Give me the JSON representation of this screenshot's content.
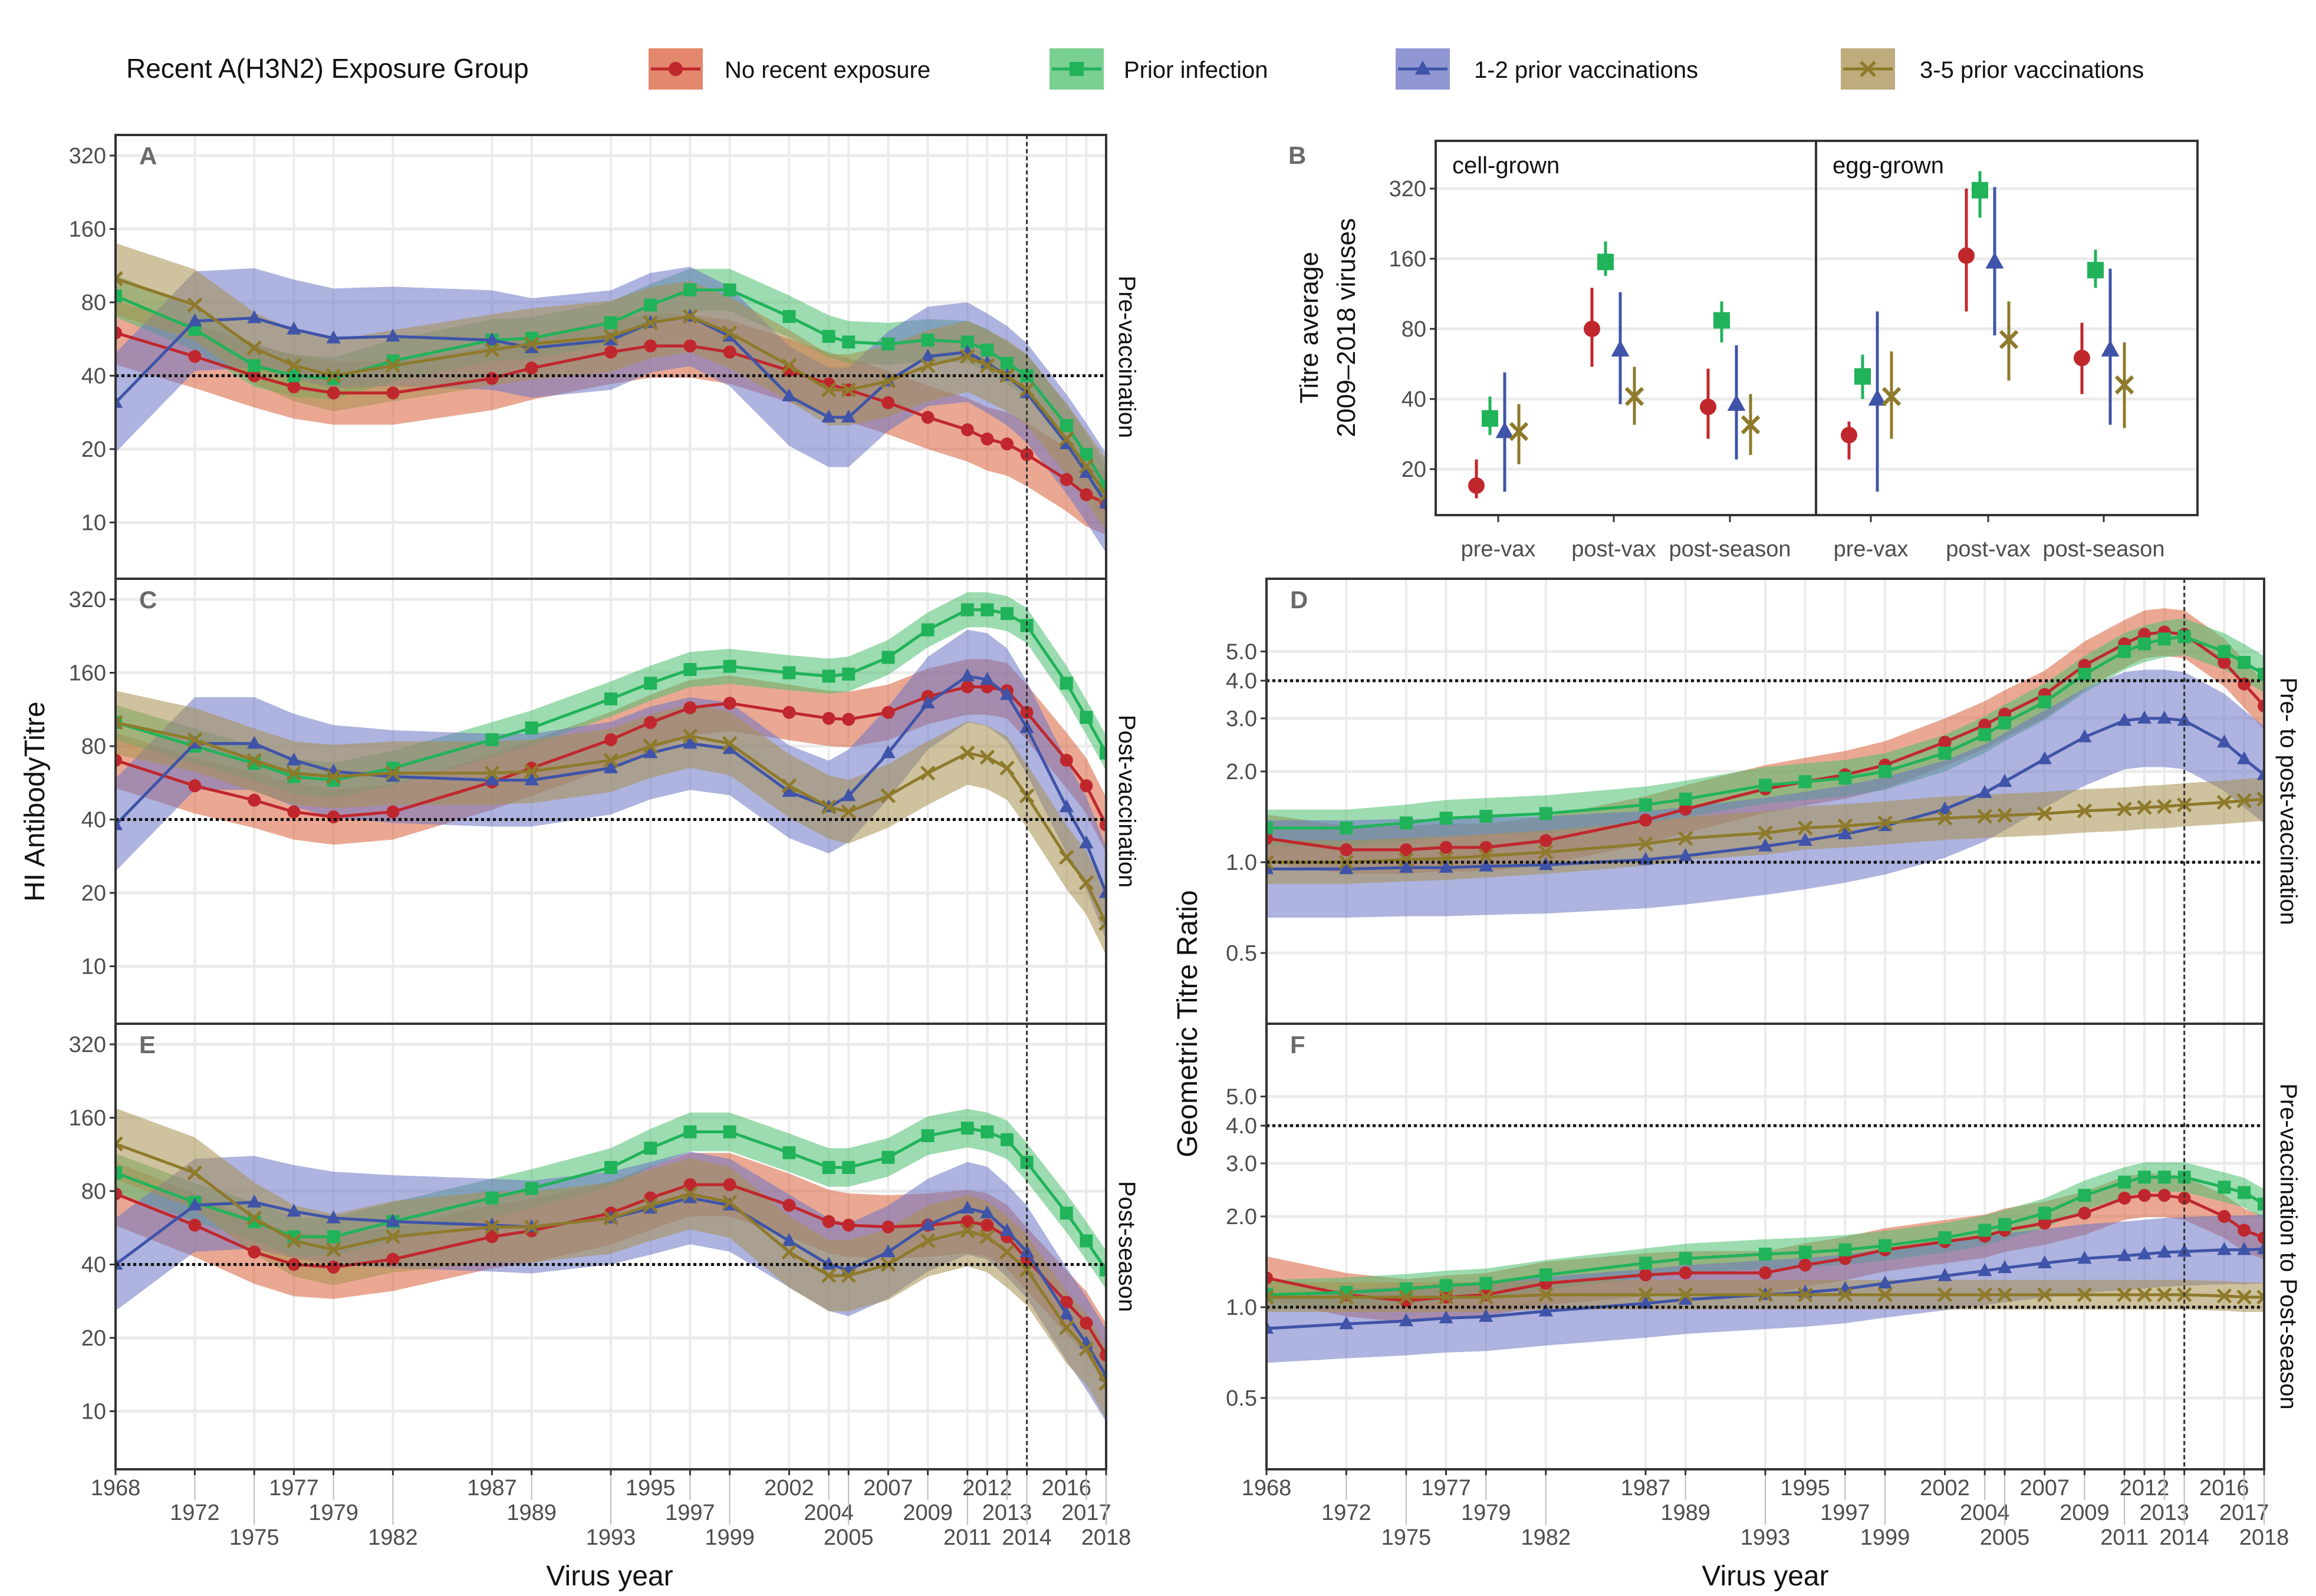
{
  "legend": {
    "title": "Recent A(H3N2) Exposure Group",
    "items": [
      {
        "label": "No recent exposure",
        "color": "#C0272D",
        "fill": "#D9603B",
        "marker": "circle"
      },
      {
        "label": "Prior infection",
        "color": "#21B35A",
        "fill": "#4DBF6F",
        "marker": "square"
      },
      {
        "label": "1-2 prior vaccinations",
        "color": "#3F54A8",
        "fill": "#6C74C4",
        "marker": "triangle"
      },
      {
        "label": "3-5 prior vaccinations",
        "color": "#8E7A2B",
        "fill": "#A89050",
        "marker": "cross"
      }
    ]
  },
  "labels": {
    "left_ylabel": "HI AntibodyTitre",
    "right_ylabel": "Geometric Titre Ratio",
    "xlabel_left": "Virus year",
    "xlabel_right": "Virus year"
  },
  "chart_data": [
    {
      "id": "A",
      "type": "line",
      "strip": "Pre-vaccination",
      "yscale": "log2",
      "yticks": [
        10,
        20,
        40,
        80,
        160,
        320
      ],
      "ref_hline": 40,
      "ref_vline": 2014,
      "x": [
        1968,
        1972,
        1975,
        1977,
        1979,
        1982,
        1987,
        1989,
        1993,
        1995,
        1997,
        1999,
        2002,
        2004,
        2005,
        2007,
        2009,
        2011,
        2012,
        2013,
        2014,
        2016,
        2017,
        2018
      ],
      "series": [
        {
          "name": "No recent exposure",
          "ci_factor": 1.35,
          "values": [
            60,
            48,
            40,
            36,
            34,
            34,
            39,
            43,
            50,
            53,
            53,
            50,
            42,
            37,
            35,
            31,
            27,
            24,
            22,
            21,
            19,
            15,
            13,
            12
          ]
        },
        {
          "name": "Prior infection",
          "ci_factor": 1.22,
          "values": [
            85,
            62,
            44,
            40,
            39,
            46,
            56,
            57,
            66,
            78,
            90,
            90,
            70,
            58,
            55,
            54,
            56,
            55,
            51,
            45,
            40,
            25,
            19,
            14
          ]
        },
        {
          "name": "1-2 prior vaccinations",
          "ci_factor": 1.6,
          "values": [
            31,
            67,
            69,
            62,
            57,
            58,
            56,
            52,
            56,
            66,
            70,
            58,
            33,
            27,
            27,
            38,
            48,
            50,
            45,
            40,
            34,
            21,
            16,
            12
          ]
        },
        {
          "name": "3-5 prior vaccinations",
          "ci_factor": 1.4,
          "values": [
            100,
            78,
            52,
            44,
            40,
            44,
            51,
            54,
            58,
            66,
            70,
            60,
            44,
            35,
            35,
            38,
            44,
            48,
            44,
            40,
            35,
            22,
            17,
            13
          ]
        }
      ]
    },
    {
      "id": "C",
      "type": "line",
      "strip": "Post-vaccination",
      "yscale": "log2",
      "yticks": [
        10,
        20,
        40,
        80,
        160,
        320
      ],
      "ref_hline": 40,
      "ref_vline": 2014,
      "x": [
        1968,
        1972,
        1975,
        1977,
        1979,
        1982,
        1987,
        1989,
        1993,
        1995,
        1997,
        1999,
        2002,
        2004,
        2005,
        2007,
        2009,
        2011,
        2012,
        2013,
        2014,
        2016,
        2017,
        2018
      ],
      "series": [
        {
          "name": "No recent exposure",
          "ci_factor": 1.3,
          "values": [
            70,
            55,
            48,
            43,
            41,
            43,
            57,
            65,
            85,
            100,
            115,
            120,
            110,
            104,
            103,
            110,
            128,
            140,
            140,
            135,
            110,
            70,
            55,
            38
          ]
        },
        {
          "name": "Prior infection",
          "ci_factor": 1.18,
          "values": [
            100,
            80,
            68,
            60,
            58,
            65,
            85,
            95,
            125,
            145,
            165,
            170,
            160,
            155,
            158,
            185,
            240,
            290,
            290,
            280,
            250,
            145,
            105,
            75
          ]
        },
        {
          "name": "1-2 prior vaccinations",
          "ci_factor": 1.55,
          "values": [
            38,
            82,
            82,
            70,
            63,
            60,
            58,
            58,
            65,
            75,
            82,
            78,
            52,
            45,
            50,
            75,
            120,
            155,
            150,
            130,
            95,
            45,
            32,
            20
          ]
        },
        {
          "name": "3-5 prior vaccinations",
          "ci_factor": 1.35,
          "values": [
            100,
            85,
            70,
            62,
            60,
            62,
            62,
            63,
            70,
            80,
            88,
            82,
            55,
            45,
            43,
            50,
            62,
            75,
            72,
            65,
            50,
            28,
            22,
            15
          ]
        }
      ]
    },
    {
      "id": "E",
      "type": "line",
      "strip": "Post-season",
      "yscale": "log2",
      "yticks": [
        10,
        20,
        40,
        80,
        160,
        320
      ],
      "ref_hline": 40,
      "ref_vline": 2014,
      "x": [
        1968,
        1972,
        1975,
        1977,
        1979,
        1982,
        1987,
        1989,
        1993,
        1995,
        1997,
        1999,
        2002,
        2004,
        2005,
        2007,
        2009,
        2011,
        2012,
        2013,
        2014,
        2016,
        2017,
        2018
      ],
      "series": [
        {
          "name": "No recent exposure",
          "ci_factor": 1.35,
          "values": [
            78,
            58,
            45,
            40,
            39,
            42,
            52,
            55,
            65,
            75,
            85,
            85,
            70,
            60,
            58,
            57,
            58,
            60,
            58,
            52,
            42,
            28,
            23,
            17
          ]
        },
        {
          "name": "Prior infection",
          "ci_factor": 1.2,
          "values": [
            95,
            72,
            60,
            52,
            52,
            60,
            75,
            82,
            100,
            120,
            140,
            140,
            115,
            100,
            100,
            110,
            135,
            145,
            140,
            130,
            105,
            65,
            50,
            38
          ]
        },
        {
          "name": "1-2 prior vaccinations",
          "ci_factor": 1.55,
          "values": [
            40,
            70,
            72,
            66,
            62,
            60,
            58,
            57,
            62,
            68,
            75,
            70,
            50,
            40,
            38,
            45,
            58,
            68,
            65,
            55,
            45,
            25,
            19,
            14
          ]
        },
        {
          "name": "3-5 prior vaccinations",
          "ci_factor": 1.4,
          "values": [
            125,
            95,
            62,
            50,
            46,
            52,
            57,
            57,
            62,
            70,
            78,
            72,
            45,
            36,
            36,
            40,
            50,
            55,
            52,
            45,
            38,
            22,
            18,
            13
          ]
        }
      ]
    },
    {
      "id": "B",
      "type": "scatter",
      "yscale": "log2",
      "ylabel": "Titre average\n2009-2018 viruses",
      "ylabel_line1": "Titre average",
      "ylabel_line2": "2009–2018 viruses",
      "yticks": [
        20,
        40,
        80,
        160,
        320
      ],
      "facets": [
        "cell-grown",
        "egg-grown"
      ],
      "categories": [
        "pre-vax",
        "post-vax",
        "post-season"
      ],
      "series": [
        {
          "name": "No recent exposure",
          "points": {
            "cell-grown": [
              [
                17,
                15,
                22
              ],
              [
                80,
                55,
                120
              ],
              [
                37,
                27,
                54
              ]
            ],
            "egg-grown": [
              [
                28,
                22,
                32
              ],
              [
                165,
                95,
                320
              ],
              [
                60,
                42,
                85
              ]
            ]
          }
        },
        {
          "name": "Prior infection",
          "points": {
            "cell-grown": [
              [
                33,
                28,
                41
              ],
              [
                155,
                135,
                190
              ],
              [
                87,
                70,
                105
              ]
            ],
            "egg-grown": [
              [
                50,
                40,
                62
              ],
              [
                315,
                240,
                380
              ],
              [
                143,
                120,
                175
              ]
            ]
          }
        },
        {
          "name": "1-2 prior vaccinations",
          "points": {
            "cell-grown": [
              [
                29,
                16,
                52
              ],
              [
                65,
                38,
                115
              ],
              [
                38,
                22,
                68
              ]
            ],
            "egg-grown": [
              [
                40,
                16,
                95
              ],
              [
                155,
                75,
                325
              ],
              [
                65,
                31,
                145
              ]
            ]
          }
        },
        {
          "name": "3-5 prior vaccinations",
          "points": {
            "cell-grown": [
              [
                29,
                21,
                38
              ],
              [
                41,
                31,
                55
              ],
              [
                31,
                23,
                42
              ]
            ],
            "egg-grown": [
              [
                41,
                27,
                64
              ],
              [
                72,
                48,
                105
              ],
              [
                46,
                30,
                70
              ]
            ]
          }
        }
      ]
    },
    {
      "id": "D",
      "type": "line",
      "strip": "Pre- to post-vaccination",
      "yscale": "log2",
      "yticks": [
        0.5,
        1.0,
        2.0,
        3.0,
        4.0,
        5.0
      ],
      "ref_hlines": [
        1.0,
        4.0
      ],
      "ref_vline": 2014,
      "x": [
        1968,
        1972,
        1975,
        1977,
        1979,
        1982,
        1987,
        1989,
        1993,
        1995,
        1997,
        1999,
        2002,
        2004,
        2005,
        2007,
        2009,
        2011,
        2012,
        2013,
        2014,
        2016,
        2017,
        2018
      ],
      "series": [
        {
          "name": "No recent exposure",
          "ci_factor": 1.2,
          "values": [
            1.2,
            1.1,
            1.1,
            1.12,
            1.12,
            1.18,
            1.38,
            1.5,
            1.75,
            1.85,
            1.95,
            2.1,
            2.5,
            2.85,
            3.1,
            3.6,
            4.5,
            5.3,
            5.7,
            5.8,
            5.7,
            4.6,
            3.9,
            3.3
          ]
        },
        {
          "name": "Prior infection",
          "ci_factor": 1.15,
          "values": [
            1.3,
            1.3,
            1.35,
            1.4,
            1.42,
            1.45,
            1.55,
            1.62,
            1.8,
            1.85,
            1.9,
            2.0,
            2.3,
            2.65,
            2.9,
            3.4,
            4.2,
            5.0,
            5.3,
            5.5,
            5.6,
            5.0,
            4.6,
            4.2
          ]
        },
        {
          "name": "1-2 prior vaccinations",
          "ci_factor": 1.45,
          "values": [
            0.95,
            0.95,
            0.96,
            0.96,
            0.97,
            0.98,
            1.02,
            1.05,
            1.13,
            1.18,
            1.24,
            1.32,
            1.5,
            1.7,
            1.85,
            2.2,
            2.6,
            2.95,
            3.0,
            3.0,
            2.95,
            2.5,
            2.2,
            1.95
          ]
        },
        {
          "name": "3-5 prior vaccinations",
          "ci_factor": 1.18,
          "values": [
            1.0,
            1.0,
            1.02,
            1.03,
            1.05,
            1.08,
            1.15,
            1.2,
            1.25,
            1.3,
            1.32,
            1.35,
            1.4,
            1.42,
            1.43,
            1.45,
            1.48,
            1.5,
            1.52,
            1.53,
            1.55,
            1.58,
            1.6,
            1.62
          ]
        }
      ]
    },
    {
      "id": "F",
      "type": "line",
      "strip": "Pre-vaccination to Post-season",
      "yscale": "log2",
      "yticks": [
        0.5,
        1.0,
        2.0,
        3.0,
        4.0,
        5.0
      ],
      "ref_hlines": [
        1.0,
        4.0
      ],
      "ref_vline": 2014,
      "x": [
        1968,
        1972,
        1975,
        1977,
        1979,
        1982,
        1987,
        1989,
        1993,
        1995,
        1997,
        1999,
        2002,
        2004,
        2005,
        2007,
        2009,
        2011,
        2012,
        2013,
        2014,
        2016,
        2017,
        2018
      ],
      "series": [
        {
          "name": "No recent exposure",
          "ci_factor": 1.18,
          "values": [
            1.25,
            1.1,
            1.05,
            1.08,
            1.1,
            1.2,
            1.28,
            1.3,
            1.3,
            1.38,
            1.45,
            1.55,
            1.65,
            1.72,
            1.8,
            1.9,
            2.05,
            2.3,
            2.35,
            2.35,
            2.3,
            2.0,
            1.8,
            1.7
          ]
        },
        {
          "name": "Prior infection",
          "ci_factor": 1.12,
          "values": [
            1.1,
            1.12,
            1.15,
            1.18,
            1.2,
            1.28,
            1.4,
            1.45,
            1.5,
            1.52,
            1.55,
            1.6,
            1.7,
            1.8,
            1.88,
            2.05,
            2.35,
            2.6,
            2.7,
            2.7,
            2.7,
            2.5,
            2.4,
            2.2
          ]
        },
        {
          "name": "1-2 prior vaccinations",
          "ci_factor": 1.3,
          "values": [
            0.85,
            0.88,
            0.9,
            0.92,
            0.93,
            0.97,
            1.03,
            1.06,
            1.1,
            1.12,
            1.15,
            1.2,
            1.27,
            1.32,
            1.35,
            1.4,
            1.45,
            1.48,
            1.5,
            1.52,
            1.53,
            1.55,
            1.55,
            1.56
          ]
        },
        {
          "name": "3-5 prior vaccinations",
          "ci_factor": 1.12,
          "values": [
            1.08,
            1.08,
            1.08,
            1.08,
            1.08,
            1.1,
            1.1,
            1.1,
            1.1,
            1.1,
            1.1,
            1.1,
            1.1,
            1.1,
            1.1,
            1.1,
            1.1,
            1.1,
            1.1,
            1.1,
            1.1,
            1.09,
            1.08,
            1.08
          ]
        }
      ]
    }
  ]
}
